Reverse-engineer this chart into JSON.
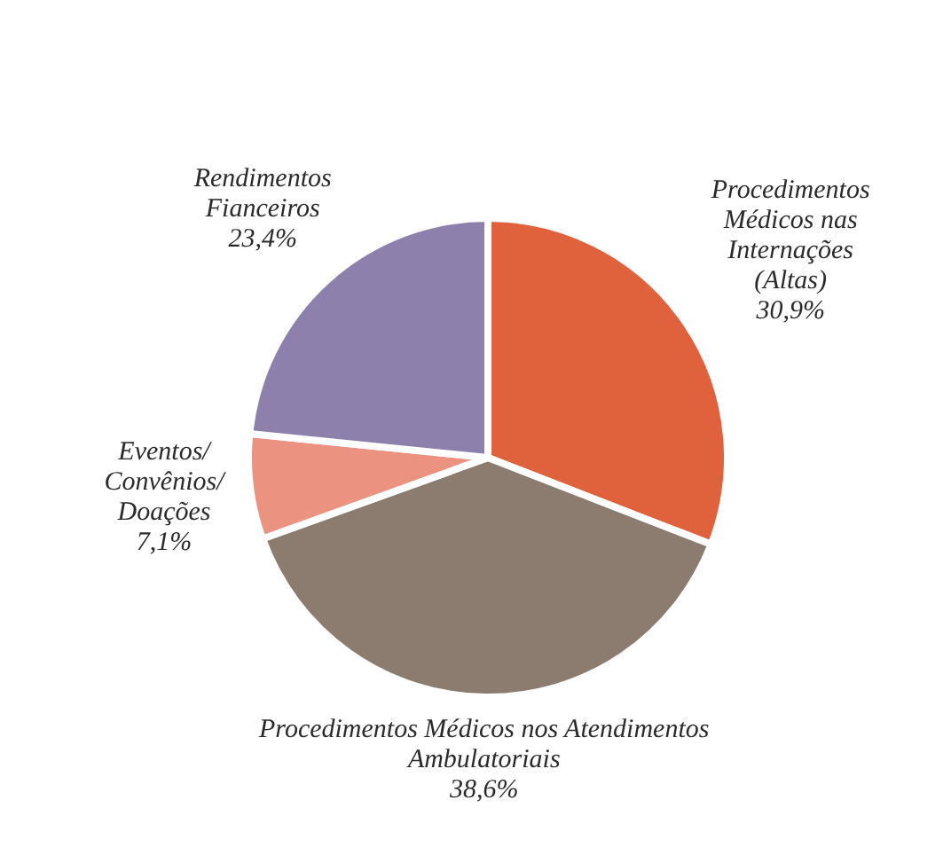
{
  "chart_data": {
    "type": "pie",
    "categories": [
      "Procedimentos Médicos nas Internações (Altas)",
      "Procedimentos Médicos nos Atendimentos Ambulatoriais",
      "Eventos/ Convênios/ Doações",
      "Rendimentos Fianceiros"
    ],
    "values": [
      30.9,
      38.6,
      7.1,
      23.4
    ],
    "value_labels": [
      "30,9%",
      "38,6%",
      "7,1%",
      "23,4%"
    ],
    "colors": [
      "#e0623c",
      "#8c7c70",
      "#eb9380",
      "#8e80ac"
    ]
  }
}
